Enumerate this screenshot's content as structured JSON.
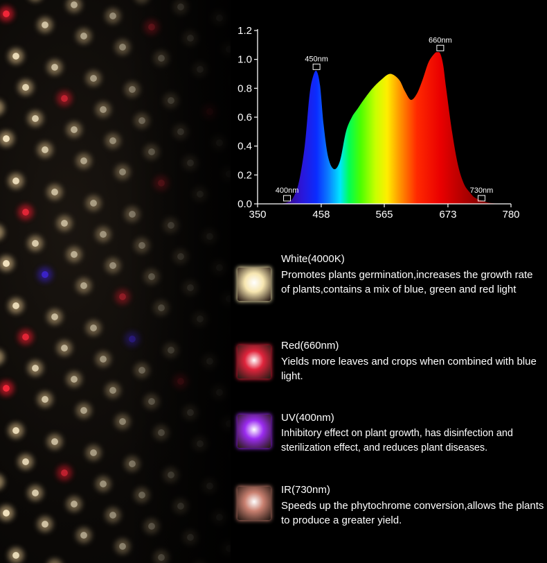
{
  "chart_data": {
    "type": "area",
    "x": [
      350,
      370,
      385,
      400,
      410,
      420,
      430,
      438,
      444,
      450,
      456,
      462,
      470,
      480,
      490,
      500,
      510,
      520,
      530,
      545,
      560,
      575,
      590,
      600,
      610,
      620,
      630,
      640,
      650,
      655,
      660,
      665,
      670,
      680,
      690,
      700,
      710,
      720,
      740,
      760
    ],
    "y": [
      0,
      0,
      0,
      0.01,
      0.04,
      0.15,
      0.4,
      0.75,
      0.88,
      0.92,
      0.82,
      0.55,
      0.32,
      0.24,
      0.3,
      0.5,
      0.6,
      0.66,
      0.72,
      0.8,
      0.86,
      0.9,
      0.86,
      0.78,
      0.72,
      0.76,
      0.86,
      0.98,
      1.04,
      1.05,
      1.04,
      0.96,
      0.8,
      0.5,
      0.27,
      0.14,
      0.08,
      0.04,
      0.01,
      0
    ],
    "xlim": [
      350,
      780
    ],
    "ylim": [
      0,
      1.2
    ],
    "x_ticks": [
      "350",
      "458",
      "565",
      "673",
      "780"
    ],
    "y_ticks": [
      "0.0",
      "0.2",
      "0.4",
      "0.6",
      "0.8",
      "1.0",
      "1.2"
    ],
    "annotations": [
      {
        "label": "400nm",
        "x": 400,
        "y": 0.01
      },
      {
        "label": "450nm",
        "x": 450,
        "y": 0.92
      },
      {
        "label": "660nm",
        "x": 660,
        "y": 1.05
      },
      {
        "label": "730nm",
        "x": 730,
        "y": 0.01
      }
    ]
  },
  "legend": [
    {
      "title": "White(4000K)",
      "desc": "Promotes plants germination,increases the growth rate of plants,contains a mix of blue, green and red light",
      "icon": "white-led-chip-icon",
      "color": "#f7e6b0"
    },
    {
      "title": "Red(660nm)",
      "desc": "Yields more leaves and crops when combined with blue light.",
      "icon": "red-led-chip-icon",
      "color": "#e0243c"
    },
    {
      "title": "UV(400nm)",
      "desc": "Inhibitory effect on plant growth, has disinfection and sterilization effect, and reduces plant diseases.",
      "icon": "uv-led-chip-icon",
      "color": "#9b2cf0"
    },
    {
      "title": "IR(730nm)",
      "desc": "Speeds up the phytochrome conversion,allows the plants to produce a greater yield.",
      "icon": "ir-led-chip-icon",
      "color": "#c98070"
    }
  ]
}
